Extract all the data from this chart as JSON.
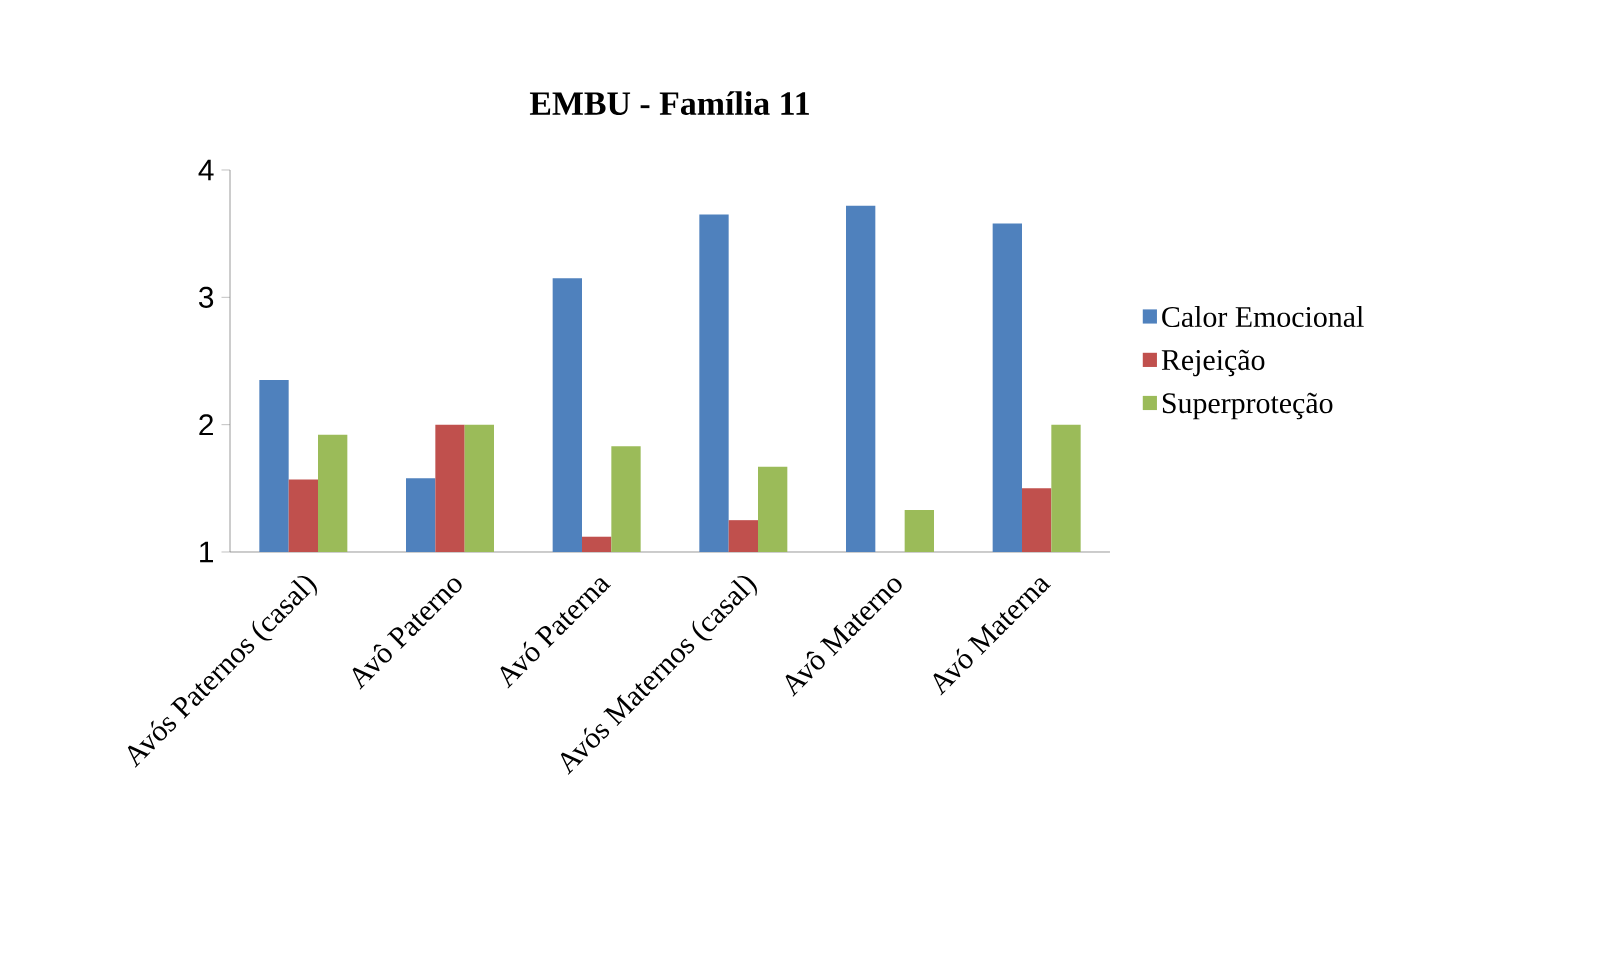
{
  "chart_data": {
    "type": "bar",
    "title": "EMBU - Família 11",
    "categories": [
      "Avós Paternos (casal)",
      "Avô Paterno",
      "Avó Paterna",
      "Avós Maternos (casal)",
      "Avô Materno",
      "Avó Materna"
    ],
    "series": [
      {
        "name": "Calor Emocional",
        "color": "#4f81bd",
        "values": [
          2.35,
          1.58,
          3.15,
          3.65,
          3.72,
          3.58
        ]
      },
      {
        "name": "Rejeição",
        "color": "#c0504d",
        "values": [
          1.57,
          2.0,
          1.12,
          1.25,
          null,
          1.5
        ]
      },
      {
        "name": "Superproteção",
        "color": "#9bbb59",
        "values": [
          1.92,
          2.0,
          1.83,
          1.67,
          1.33,
          2.0
        ]
      }
    ],
    "ylim": [
      1,
      4
    ],
    "yticks": [
      1,
      2,
      3,
      4
    ],
    "legend": "right"
  }
}
